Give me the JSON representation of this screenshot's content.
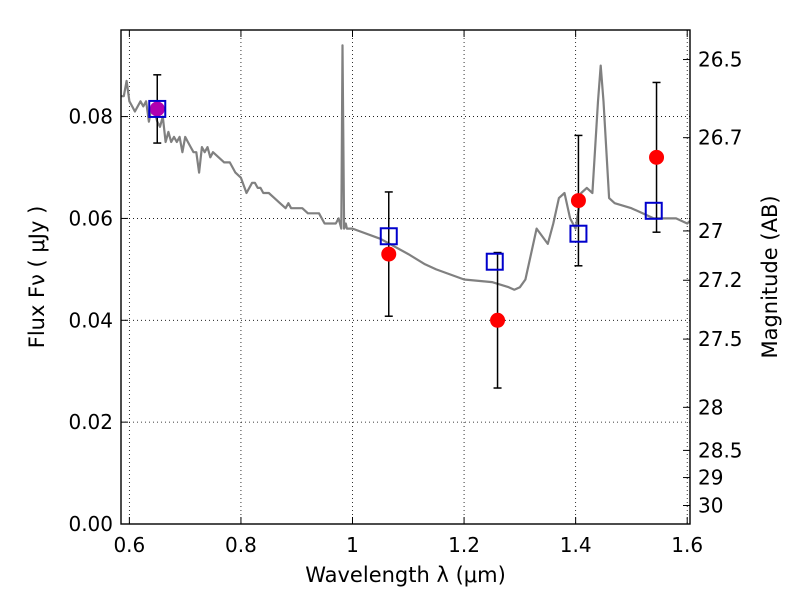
{
  "chart_data": {
    "type": "scatter",
    "xlabel": "Wavelength  λ (μm)",
    "ylabel": "Flux  Fν ( μJy )",
    "ylabel_right": "Magnitude (AB)",
    "xlim": [
      0.585,
      1.605
    ],
    "ylim": [
      0.0,
      0.097
    ],
    "grid": true,
    "x_ticks": [
      0.6,
      0.8,
      1.0,
      1.2,
      1.4,
      1.6
    ],
    "x_tick_labels": [
      "0.6",
      "0.8",
      "1",
      "1.2",
      "1.4",
      "1.6"
    ],
    "y_ticks": [
      0.0,
      0.02,
      0.04,
      0.06,
      0.08
    ],
    "y_tick_labels": [
      "0.00",
      "0.02",
      "0.04",
      "0.06",
      "0.08"
    ],
    "right_ticks": [
      {
        "mag": 26.5,
        "label": "26.5"
      },
      {
        "mag": 26.7,
        "label": "26.7"
      },
      {
        "mag": 27.0,
        "label": "27"
      },
      {
        "mag": 27.2,
        "label": "27.2"
      },
      {
        "mag": 27.5,
        "label": "27.5"
      },
      {
        "mag": 28.0,
        "label": "28"
      },
      {
        "mag": 28.5,
        "label": "28.5"
      },
      {
        "mag": 29.0,
        "label": "29"
      },
      {
        "mag": 30.0,
        "label": "30"
      }
    ],
    "colors": {
      "spectrum": "#808080",
      "observed": "#ff0000",
      "model": "#0000cc",
      "errorbar": "#000000",
      "first_point": "#b000b0"
    },
    "series": [
      {
        "kind": "line",
        "x": [
          0.585,
          0.59,
          0.595,
          0.6,
          0.605,
          0.61,
          0.62,
          0.625,
          0.63,
          0.635,
          0.64,
          0.645,
          0.65,
          0.655,
          0.66,
          0.665,
          0.67,
          0.675,
          0.68,
          0.685,
          0.69,
          0.695,
          0.7,
          0.705,
          0.71,
          0.715,
          0.72,
          0.725,
          0.73,
          0.735,
          0.74,
          0.745,
          0.75,
          0.76,
          0.77,
          0.78,
          0.79,
          0.8,
          0.81,
          0.82,
          0.825,
          0.83,
          0.835,
          0.84,
          0.85,
          0.86,
          0.87,
          0.88,
          0.885,
          0.89,
          0.9,
          0.91,
          0.92,
          0.93,
          0.94,
          0.95,
          0.96,
          0.97,
          0.975,
          0.98,
          0.982,
          0.985,
          0.988,
          0.99,
          1.0,
          1.05,
          1.1,
          1.13,
          1.15,
          1.2,
          1.25,
          1.28,
          1.29,
          1.3,
          1.31,
          1.32,
          1.33,
          1.35,
          1.36,
          1.37,
          1.38,
          1.39,
          1.4,
          1.41,
          1.42,
          1.43,
          1.44,
          1.445,
          1.45,
          1.46,
          1.47,
          1.5,
          1.52,
          1.54,
          1.56,
          1.58,
          1.6,
          1.605
        ],
        "y": [
          0.084,
          0.084,
          0.087,
          0.083,
          0.082,
          0.081,
          0.083,
          0.082,
          0.083,
          0.079,
          0.082,
          0.081,
          0.079,
          0.078,
          0.08,
          0.075,
          0.077,
          0.075,
          0.076,
          0.075,
          0.076,
          0.073,
          0.076,
          0.075,
          0.074,
          0.073,
          0.073,
          0.069,
          0.074,
          0.073,
          0.074,
          0.072,
          0.073,
          0.072,
          0.071,
          0.071,
          0.069,
          0.068,
          0.065,
          0.067,
          0.067,
          0.066,
          0.066,
          0.065,
          0.065,
          0.064,
          0.063,
          0.062,
          0.063,
          0.062,
          0.062,
          0.062,
          0.061,
          0.061,
          0.061,
          0.059,
          0.059,
          0.059,
          0.06,
          0.058,
          0.094,
          0.058,
          0.059,
          0.058,
          0.058,
          0.056,
          0.053,
          0.051,
          0.05,
          0.048,
          0.0475,
          0.0465,
          0.046,
          0.0465,
          0.048,
          0.053,
          0.058,
          0.055,
          0.059,
          0.064,
          0.065,
          0.06,
          0.058,
          0.065,
          0.066,
          0.065,
          0.083,
          0.09,
          0.083,
          0.064,
          0.063,
          0.062,
          0.061,
          0.06,
          0.06,
          0.06,
          0.059,
          0.0595
        ]
      },
      {
        "kind": "points",
        "marker": "circle",
        "x": [
          0.65,
          1.065,
          1.26,
          1.405,
          1.545
        ],
        "y": [
          0.0815,
          0.053,
          0.04,
          0.0635,
          0.072
        ],
        "yerr": [
          0.0067,
          0.0122,
          0.0133,
          0.0128,
          0.0147
        ]
      },
      {
        "kind": "points",
        "marker": "square",
        "x": [
          0.65,
          1.065,
          1.255,
          1.405,
          1.54
        ],
        "y": [
          0.0815,
          0.0565,
          0.0515,
          0.057,
          0.0615
        ]
      }
    ]
  }
}
